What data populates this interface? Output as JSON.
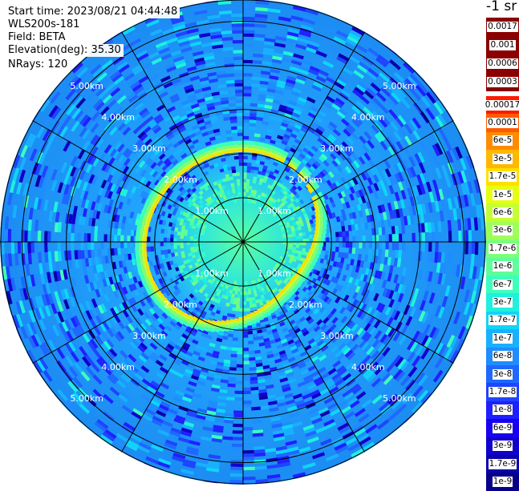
{
  "header": {
    "start_time": "Start time: 2023/08/21 04:44:48",
    "instrument": "WLS200s-181",
    "field": "Field: BETA",
    "elevation": "Elevation(deg): 35.30",
    "nrays": "NRays: 120"
  },
  "colorbar": {
    "unit_label": "-1 sr",
    "upper_color": "#8b0000",
    "upper_labels": [
      "0.0017",
      "0.001",
      "0.0006",
      "0.0003"
    ],
    "main_labels": [
      "0.00017",
      "0.0001",
      "6e-5",
      "3e-5",
      "1.7e-5",
      "1e-5",
      "6e-6",
      "3e-6",
      "1.7e-6",
      "1e-6",
      "6e-7",
      "3e-7",
      "1.7e-7",
      "1e-7",
      "6e-8",
      "3e-8",
      "1.7e-8",
      "1e-8",
      "6e-9",
      "3e-9",
      "1.7e-9",
      "1e-9"
    ],
    "main_colors": [
      "#ff1a00",
      "#ff5a00",
      "#ff8c00",
      "#ffb800",
      "#ffe000",
      "#e6ff10",
      "#c4ff33",
      "#9dff5a",
      "#7dff7a",
      "#5dff9a",
      "#3dffbc",
      "#20f0dd",
      "#10d4f8",
      "#18b0ff",
      "#1f8cff",
      "#1f68ff",
      "#1f44ff",
      "#1f20ff",
      "#1800f0",
      "#1000cc",
      "#0a00aa",
      "#060088"
    ]
  },
  "chart_data": {
    "type": "heatmap",
    "projection": "polar (PPI)",
    "field": "BETA",
    "instrument": "WLS200s-181",
    "start_time": "2023/08/21 04:44:48",
    "elevation_deg": 35.3,
    "n_rays": 120,
    "range_rings_km": [
      1.0,
      2.0,
      3.0,
      4.0,
      5.0
    ],
    "range_ring_labels": [
      "1.00km",
      "2.00km",
      "3.00km",
      "4.00km",
      "5.00km"
    ],
    "spokes_deg": [
      0,
      30,
      60,
      90,
      120,
      150,
      180,
      210,
      240,
      270,
      300,
      330
    ],
    "max_range_km": 5.5,
    "colorscale": "log, 1e-9 to 0.0017 sr^-1",
    "features": [
      {
        "description_value": "near-field 0-1.5 km",
        "beta_approx": "1e-7"
      },
      {
        "description_value": "ring at ~1.7-2.2 km",
        "beta_approx": "1e-5"
      },
      {
        "description_value": "background beyond 2.5 km",
        "beta_approx": "3e-8"
      }
    ]
  }
}
